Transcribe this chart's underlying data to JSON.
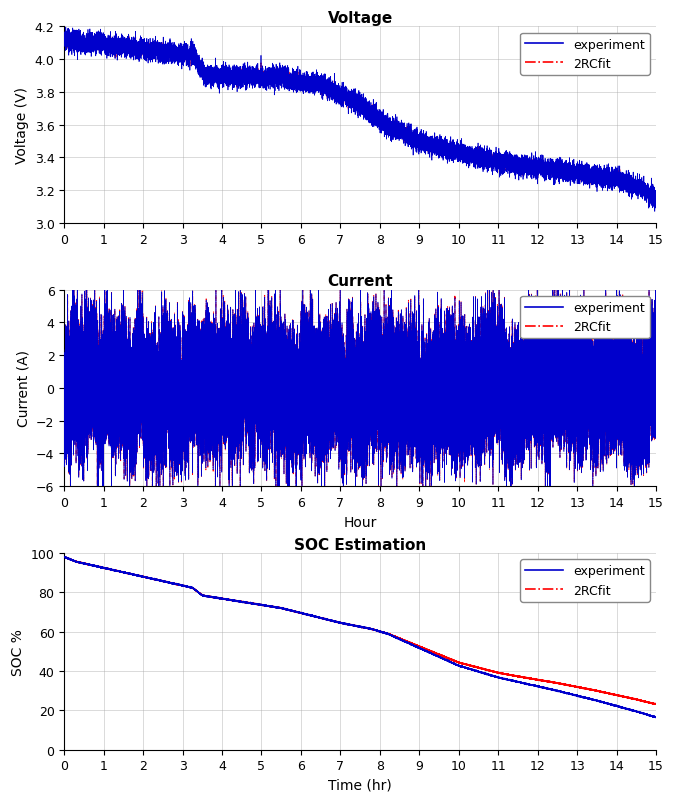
{
  "title_voltage": "Voltage",
  "title_current": "Current",
  "title_soc": "SOC Estimation",
  "ylabel_voltage": "Voltage (V)",
  "ylabel_current": "Current (A)",
  "ylabel_soc": "SOC %",
  "xlabel_current": "Hour",
  "xlabel_soc": "Time (hr)",
  "xlim": [
    0,
    15
  ],
  "voltage_ylim": [
    3.0,
    4.2
  ],
  "current_ylim": [
    -6,
    6
  ],
  "soc_ylim": [
    0,
    100
  ],
  "voltage_yticks": [
    3.0,
    3.2,
    3.4,
    3.6,
    3.8,
    4.0,
    4.2
  ],
  "current_yticks": [
    -6,
    -4,
    -2,
    0,
    2,
    4,
    6
  ],
  "soc_yticks": [
    0,
    20,
    40,
    60,
    80,
    100
  ],
  "xticks": [
    0,
    1,
    2,
    3,
    4,
    5,
    6,
    7,
    8,
    9,
    10,
    11,
    12,
    13,
    14,
    15
  ],
  "color_experiment": "#0000CC",
  "color_fit": "#FF0000",
  "legend_experiment": "experiment",
  "legend_fit": "2RCfit",
  "figsize": [
    6.75,
    8.04
  ],
  "dpi": 100,
  "n_points": 54000,
  "total_hours": 15,
  "bg_color": "#FFFFFF",
  "grid_color": "#AAAAAA"
}
